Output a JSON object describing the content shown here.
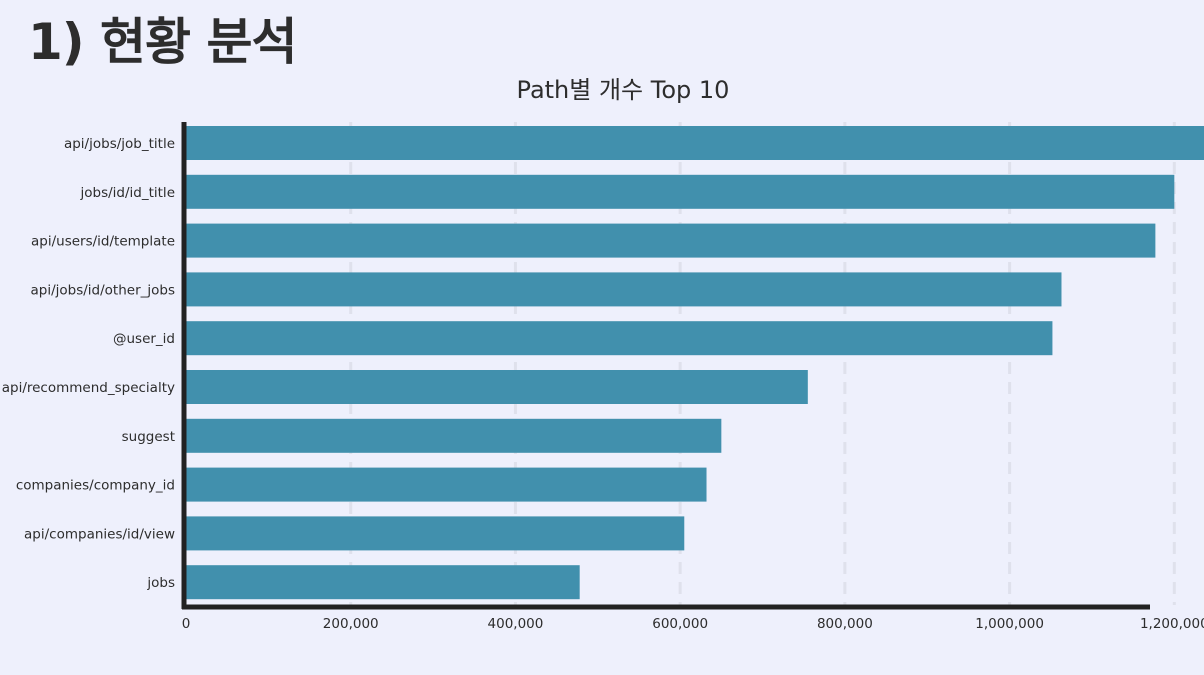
{
  "slide": {
    "heading": "1) 현황 분석"
  },
  "chart_data": {
    "type": "bar",
    "orientation": "horizontal",
    "title": "Path별 개수 Top 10",
    "xlabel": "",
    "ylabel": "",
    "categories": [
      "api/jobs/job_title",
      "jobs/id/id_title",
      "api/users/id/template",
      "api/jobs/id/other_jobs",
      "@user_id",
      "api/recommend_specialty",
      "suggest",
      "companies/company_id",
      "api/companies/id/view",
      "jobs"
    ],
    "values": [
      1238000,
      1200000,
      1177000,
      1063000,
      1052000,
      755000,
      650000,
      632000,
      605000,
      478000
    ],
    "xlim": [
      0,
      1270000
    ],
    "xticks": [
      0,
      200000,
      400000,
      600000,
      800000,
      1000000,
      1200000
    ],
    "xtick_labels": [
      "0",
      "200,000",
      "400,000",
      "600,000",
      "800,000",
      "1,000,000",
      "1,200,000"
    ],
    "grid": "vertical-dashed",
    "colors": {
      "bar": "#4190ad",
      "axis": "#222222",
      "grid": "#dfe1ec"
    }
  }
}
